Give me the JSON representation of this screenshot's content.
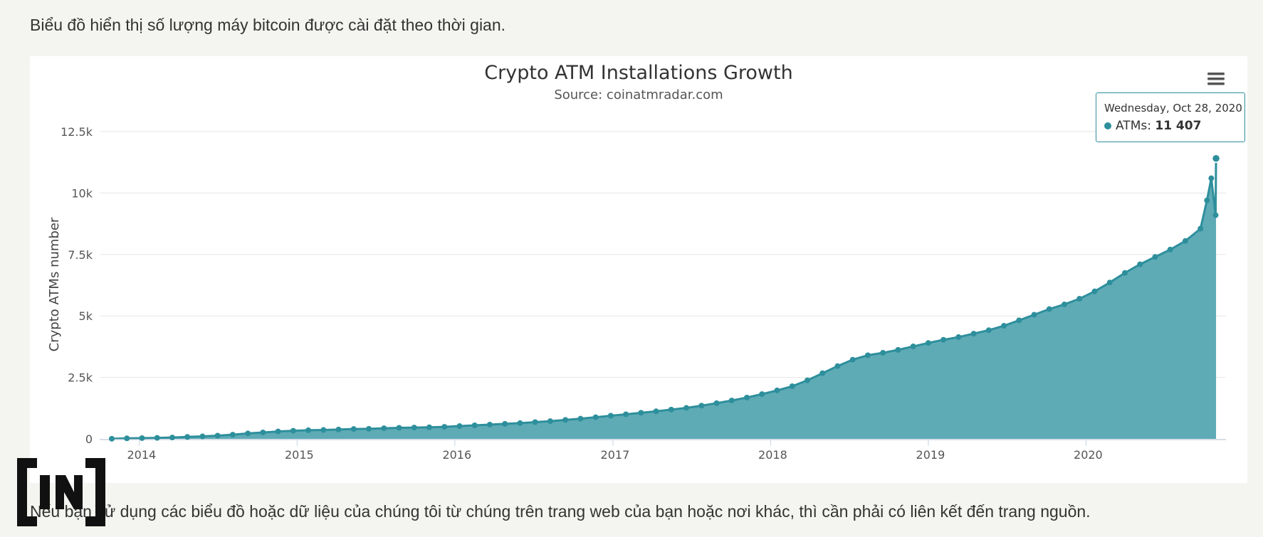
{
  "intro_text": "Biểu đồ hiển thị số lượng máy bitcoin được cài đặt theo thời gian.",
  "footer_text": "Nếu bạn sử dụng các biểu đồ hoặc dữ liệu của chúng tôi từ chúng trên trang web của bạn hoặc nơi khác, thì cần phải có liên kết đến trang nguồn.",
  "logo_text": "[IN]",
  "menu_icon": "hamburger-menu-icon",
  "colors": {
    "series": "#2e8f9c",
    "area": "#5eabb6",
    "grid": "#e6e6e6"
  },
  "tooltip": {
    "date": "Wednesday, Oct 28, 2020",
    "label": "ATMs:",
    "value": "11 407"
  },
  "chart_data": {
    "type": "area",
    "title": "Crypto ATM Installations Growth",
    "subtitle": "Source: coinatmradar.com",
    "ylabel": "Crypto ATMs number",
    "xlabel": "",
    "ylim": [
      0,
      12500
    ],
    "yticks": [
      0,
      2500,
      5000,
      7500,
      10000,
      12500
    ],
    "ytick_labels": [
      "0",
      "2.5k",
      "5k",
      "7.5k",
      "10k",
      "12.5k"
    ],
    "xticks": [
      "2014-01-01",
      "2015-01-01",
      "2016-01-01",
      "2017-01-01",
      "2018-01-01",
      "2019-01-01",
      "2020-01-01"
    ],
    "xtick_labels": [
      "2014",
      "2015",
      "2016",
      "2017",
      "2018",
      "2019",
      "2020"
    ],
    "xlim": [
      "2013-10-01",
      "2020-11-20"
    ],
    "grid": true,
    "legend": "none",
    "series": [
      {
        "name": "ATMs",
        "points": [
          [
            "2013-10-29",
            5
          ],
          [
            "2013-12-03",
            20
          ],
          [
            "2014-01-07",
            30
          ],
          [
            "2014-02-11",
            40
          ],
          [
            "2014-03-18",
            55
          ],
          [
            "2014-04-22",
            80
          ],
          [
            "2014-05-27",
            100
          ],
          [
            "2014-07-01",
            130
          ],
          [
            "2014-08-05",
            170
          ],
          [
            "2014-09-09",
            220
          ],
          [
            "2014-10-14",
            260
          ],
          [
            "2014-11-18",
            300
          ],
          [
            "2014-12-23",
            330
          ],
          [
            "2015-01-27",
            350
          ],
          [
            "2015-03-03",
            360
          ],
          [
            "2015-04-07",
            380
          ],
          [
            "2015-05-12",
            400
          ],
          [
            "2015-06-16",
            410
          ],
          [
            "2015-07-21",
            430
          ],
          [
            "2015-08-25",
            450
          ],
          [
            "2015-09-29",
            460
          ],
          [
            "2015-11-03",
            470
          ],
          [
            "2015-12-08",
            490
          ],
          [
            "2016-01-12",
            520
          ],
          [
            "2016-02-16",
            550
          ],
          [
            "2016-03-22",
            580
          ],
          [
            "2016-04-26",
            610
          ],
          [
            "2016-05-31",
            640
          ],
          [
            "2016-07-05",
            680
          ],
          [
            "2016-08-09",
            720
          ],
          [
            "2016-09-13",
            770
          ],
          [
            "2016-10-18",
            820
          ],
          [
            "2016-11-22",
            880
          ],
          [
            "2016-12-27",
            940
          ],
          [
            "2017-01-31",
            1000
          ],
          [
            "2017-03-07",
            1060
          ],
          [
            "2017-04-11",
            1120
          ],
          [
            "2017-05-16",
            1190
          ],
          [
            "2017-06-20",
            1260
          ],
          [
            "2017-07-25",
            1350
          ],
          [
            "2017-08-29",
            1450
          ],
          [
            "2017-10-03",
            1560
          ],
          [
            "2017-11-07",
            1680
          ],
          [
            "2017-12-12",
            1820
          ],
          [
            "2018-01-16",
            1970
          ],
          [
            "2018-02-20",
            2140
          ],
          [
            "2018-03-27",
            2380
          ],
          [
            "2018-05-01",
            2670
          ],
          [
            "2018-06-05",
            2960
          ],
          [
            "2018-07-10",
            3220
          ],
          [
            "2018-08-14",
            3400
          ],
          [
            "2018-09-18",
            3500
          ],
          [
            "2018-10-23",
            3620
          ],
          [
            "2018-11-27",
            3760
          ],
          [
            "2019-01-01",
            3900
          ],
          [
            "2019-02-05",
            4030
          ],
          [
            "2019-03-12",
            4140
          ],
          [
            "2019-04-16",
            4280
          ],
          [
            "2019-05-21",
            4420
          ],
          [
            "2019-06-25",
            4600
          ],
          [
            "2019-07-30",
            4820
          ],
          [
            "2019-09-03",
            5050
          ],
          [
            "2019-10-08",
            5280
          ],
          [
            "2019-11-12",
            5470
          ],
          [
            "2019-12-17",
            5700
          ],
          [
            "2020-01-21",
            6000
          ],
          [
            "2020-02-25",
            6360
          ],
          [
            "2020-03-31",
            6750
          ],
          [
            "2020-05-05",
            7100
          ],
          [
            "2020-06-09",
            7400
          ],
          [
            "2020-07-14",
            7700
          ],
          [
            "2020-08-18",
            8050
          ],
          [
            "2020-09-22",
            8550
          ],
          [
            "2020-10-27",
            9100
          ],
          [
            "2020-10-07",
            9700
          ],
          [
            "2020-10-17",
            10600
          ],
          [
            "2020-10-28",
            11407
          ]
        ]
      }
    ]
  }
}
